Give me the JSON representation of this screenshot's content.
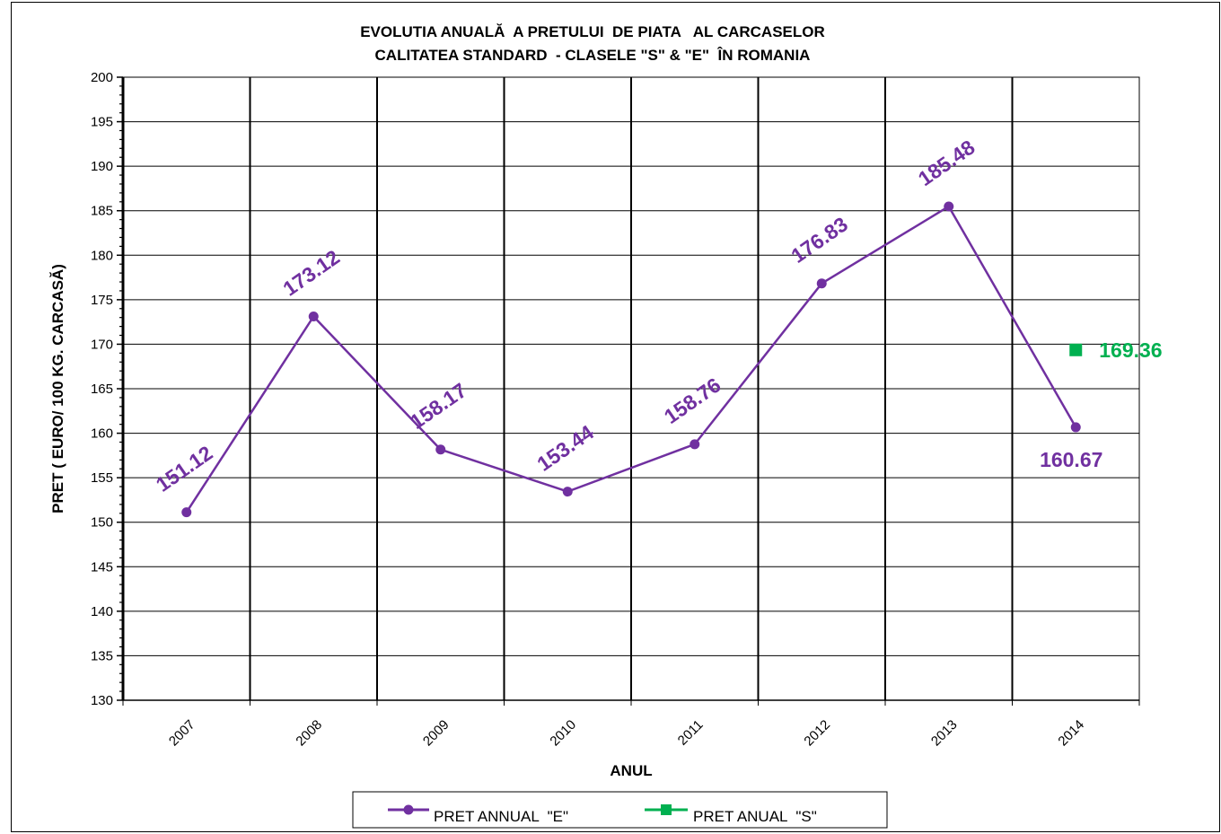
{
  "colors": {
    "series_e": "#7030A0",
    "series_s": "#00B050",
    "grid": "#000000"
  },
  "chart_data": {
    "type": "line",
    "title": [
      "EVOLUTIA ANUALĂ  A PRETULUI  DE PIATA   AL CARCASELOR",
      "CALITATEA STANDARD  - CLASELE \"S\" & \"E\"  ÎN ROMANIA"
    ],
    "xlabel": "ANUL",
    "ylabel": "PRET ( EURO/ 100 KG. CARCASĂ)",
    "ylim": [
      130,
      200
    ],
    "y_ticks": [
      "130",
      "135",
      "140",
      "145",
      "150",
      "155",
      "160",
      "165",
      "170",
      "175",
      "180",
      "185",
      "190",
      "195",
      "200"
    ],
    "categories": [
      "2007",
      "2008",
      "2009",
      "2010",
      "2011",
      "2012",
      "2013",
      "2014"
    ],
    "grid": true,
    "legend_position": "bottom",
    "series": [
      {
        "name": "PRET ANNUAL  \"E\"",
        "values": [
          151.12,
          173.12,
          158.17,
          153.44,
          158.76,
          176.83,
          185.48,
          160.67
        ],
        "labels": [
          "151.12",
          "173.12",
          "158.17",
          "153.44",
          "158.76",
          "176.83",
          "185.48",
          "160.67"
        ]
      },
      {
        "name": "PRET ANUAL  \"S\"",
        "values": [
          null,
          null,
          null,
          null,
          null,
          null,
          null,
          169.36
        ],
        "labels": [
          "",
          "",
          "",
          "",
          "",
          "",
          "",
          "169.36"
        ]
      }
    ]
  }
}
